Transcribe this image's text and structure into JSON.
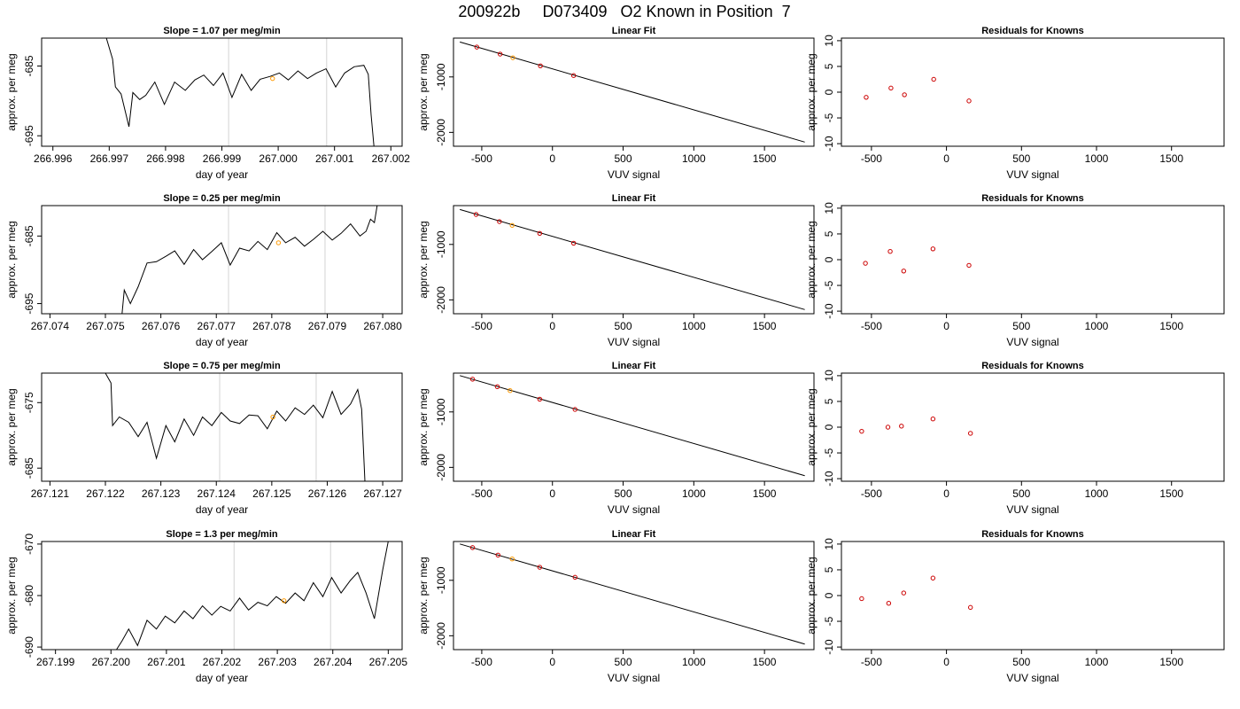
{
  "figure": {
    "title": "200922b     D073409   O2 Known in Position  7"
  },
  "colors": {
    "line": "#000000",
    "grid": "#d3d3d3",
    "point_red": "#cc0000",
    "point_orange": "#ff9900"
  },
  "chart_data": [
    {
      "type": "line",
      "row": 0,
      "col": 0,
      "title": "Slope =  1.07  per meg/min",
      "xlabel": "day of year",
      "ylabel": "approx. per meg",
      "xlim": [
        266.9958,
        267.0022
      ],
      "ylim": [
        -696.5,
        -681.0
      ],
      "xticks": [
        266.996,
        266.997,
        266.998,
        266.999,
        267.0,
        267.001,
        267.002
      ],
      "xtick_labels": [
        "266.996",
        "266.997",
        "266.998",
        "266.999",
        "267.000",
        "267.001",
        "267.002"
      ],
      "yticks": [
        -685,
        -695
      ],
      "ytick_labels": [
        "-685",
        "-695"
      ],
      "vlines": [
        266.99912,
        267.00086
      ],
      "x": [
        266.99695,
        266.99706,
        266.99711,
        266.99721,
        266.99735,
        266.99742,
        266.99754,
        266.99765,
        266.99781,
        266.99798,
        266.99816,
        266.99835,
        266.99852,
        266.99868,
        266.99885,
        266.99902,
        266.99918,
        266.99935,
        266.99952,
        266.99968,
        266.99985,
        267.00002,
        267.00018,
        267.00035,
        267.00052,
        267.00068,
        267.00085,
        267.00102,
        267.00118,
        267.00135,
        267.00152,
        267.0016,
        267.00165,
        267.0017
      ],
      "y": [
        -681,
        -684,
        -688,
        -689,
        -693.7,
        -688.8,
        -689.8,
        -689.2,
        -687.3,
        -690.5,
        -687.3,
        -688.5,
        -687.0,
        -686.3,
        -687.8,
        -686.0,
        -689.5,
        -686.2,
        -688.5,
        -686.9,
        -686.5,
        -686.0,
        -687.0,
        -685.7,
        -686.8,
        -686.0,
        -685.4,
        -688.0,
        -686.0,
        -685.1,
        -684.9,
        -686.2,
        -692.0,
        -696.5
      ],
      "marker": {
        "x": 266.9999,
        "y": -686.8
      }
    },
    {
      "type": "line",
      "row": 1,
      "col": 0,
      "title": "Slope =  0.25  per meg/min",
      "xlabel": "day of year",
      "ylabel": "approx. per meg",
      "xlim": [
        267.07385,
        267.08035
      ],
      "ylim": [
        -696.5,
        -680.5
      ],
      "xticks": [
        267.074,
        267.075,
        267.076,
        267.077,
        267.078,
        267.079,
        267.08
      ],
      "xtick_labels": [
        "267.074",
        "267.075",
        "267.076",
        "267.077",
        "267.078",
        "267.079",
        "267.080"
      ],
      "yticks": [
        -685,
        -695
      ],
      "ytick_labels": [
        "-685",
        "-695"
      ],
      "vlines": [
        267.07722,
        267.07896
      ],
      "x": [
        267.0753,
        267.07534,
        267.07545,
        267.07559,
        267.07575,
        267.07592,
        267.07609,
        267.07625,
        267.07642,
        267.07659,
        267.07675,
        267.07692,
        267.07709,
        267.07725,
        267.07742,
        267.07759,
        267.07775,
        267.07792,
        267.07809,
        267.07825,
        267.07842,
        267.07859,
        267.07875,
        267.07892,
        267.07909,
        267.07925,
        267.07942,
        267.07959,
        267.0797,
        267.07978,
        267.07985,
        267.0799
      ],
      "y": [
        -696.5,
        -693.0,
        -695.0,
        -692.5,
        -689.0,
        -688.8,
        -688.0,
        -687.2,
        -689.2,
        -687.0,
        -688.5,
        -687.3,
        -686.0,
        -689.3,
        -686.8,
        -687.2,
        -685.8,
        -687.0,
        -684.5,
        -686.0,
        -685.2,
        -686.5,
        -685.5,
        -684.3,
        -685.6,
        -684.6,
        -683.2,
        -685.0,
        -684.3,
        -682.5,
        -683.0,
        -680.5
      ],
      "marker": {
        "x": 267.07812,
        "y": -686.0
      }
    },
    {
      "type": "line",
      "row": 2,
      "col": 0,
      "title": "Slope =  0.75  per meg/min",
      "xlabel": "day of year",
      "ylabel": "approx. per meg",
      "xlim": [
        267.12085,
        267.12735
      ],
      "ylim": [
        -687.0,
        -670.5
      ],
      "xticks": [
        267.121,
        267.122,
        267.123,
        267.124,
        267.125,
        267.126,
        267.127
      ],
      "xtick_labels": [
        "267.121",
        "267.122",
        "267.123",
        "267.124",
        "267.125",
        "267.126",
        "267.127"
      ],
      "yticks": [
        -675,
        -685
      ],
      "ytick_labels": [
        "-675",
        "-685"
      ],
      "vlines": [
        267.12406,
        267.1258
      ],
      "x": [
        267.122,
        267.1221,
        267.12213,
        267.12225,
        267.12242,
        267.12259,
        267.12275,
        267.12292,
        267.12309,
        267.12325,
        267.12342,
        267.12359,
        267.12375,
        267.12392,
        267.12409,
        267.12425,
        267.12442,
        267.12459,
        267.12475,
        267.12492,
        267.12509,
        267.12525,
        267.12542,
        267.12559,
        267.12575,
        267.12592,
        267.12609,
        267.12625,
        267.12642,
        267.12655,
        267.12662,
        267.12668
      ],
      "y": [
        -670.5,
        -672.0,
        -678.5,
        -677.2,
        -678.0,
        -680.2,
        -678.0,
        -683.5,
        -678.5,
        -681.0,
        -677.5,
        -680.0,
        -677.2,
        -678.5,
        -676.5,
        -677.8,
        -678.2,
        -676.9,
        -677.0,
        -679.0,
        -676.3,
        -677.8,
        -675.8,
        -676.8,
        -675.4,
        -677.3,
        -673.3,
        -676.8,
        -675.2,
        -673.0,
        -676.0,
        -687.0
      ],
      "marker": {
        "x": 267.12502,
        "y": -677.2
      }
    },
    {
      "type": "line",
      "row": 3,
      "col": 0,
      "title": "Slope =  1.3  per meg/min",
      "xlabel": "day of year",
      "ylabel": "approx. per meg",
      "xlim": [
        267.19875,
        267.20525
      ],
      "ylim": [
        -690.5,
        -669.5
      ],
      "xticks": [
        267.199,
        267.2,
        267.201,
        267.202,
        267.203,
        267.204,
        267.205
      ],
      "xtick_labels": [
        "267.199",
        "267.200",
        "267.201",
        "267.202",
        "267.203",
        "267.204",
        "267.205"
      ],
      "yticks": [
        -670,
        -680,
        -690
      ],
      "ytick_labels": [
        "-670",
        "-680",
        "-690"
      ],
      "vlines": [
        267.20222,
        267.20396
      ],
      "x": [
        267.2001,
        267.2002,
        267.20032,
        267.20048,
        267.20065,
        267.20082,
        267.20098,
        267.20115,
        267.20132,
        267.20148,
        267.20165,
        267.20182,
        267.20198,
        267.20215,
        267.20232,
        267.20248,
        267.20265,
        267.20282,
        267.20298,
        267.20315,
        267.20332,
        267.20348,
        267.20365,
        267.20382,
        267.20398,
        267.20415,
        267.20432,
        267.20445,
        267.2046,
        267.20475,
        267.2049,
        267.205
      ],
      "y": [
        -690.5,
        -688.8,
        -686.5,
        -689.7,
        -684.8,
        -686.5,
        -684.0,
        -685.3,
        -683.0,
        -684.5,
        -682.0,
        -683.8,
        -682.1,
        -683.0,
        -680.5,
        -682.8,
        -681.3,
        -682.0,
        -680.2,
        -681.5,
        -679.5,
        -681.0,
        -677.5,
        -680.2,
        -676.5,
        -679.5,
        -677.0,
        -675.5,
        -679.5,
        -684.5,
        -675.0,
        -669.5
      ],
      "marker": {
        "x": 267.20312,
        "y": -681.0
      }
    },
    {
      "type": "scatter",
      "row": 0,
      "col": 1,
      "title": "Linear Fit",
      "xlabel": "VUV signal",
      "ylabel": "approx. per meg",
      "xlim": [
        -700,
        1850
      ],
      "ylim": [
        -2250,
        -300
      ],
      "xticks": [
        -500,
        0,
        500,
        1000,
        1500
      ],
      "xtick_labels": [
        "-500",
        "0",
        "500",
        "1000",
        "1500"
      ],
      "yticks": [
        -1000,
        -2000
      ],
      "ytick_labels": [
        "-1000",
        "-2000"
      ],
      "fit_line": {
        "x": [
          -655,
          1785
        ],
        "y": [
          -370,
          -2175
        ]
      },
      "points": [
        {
          "x": -535,
          "y": -462,
          "color": "red"
        },
        {
          "x": -370,
          "y": -588,
          "color": "red"
        },
        {
          "x": -280,
          "y": -654,
          "color": "orange"
        },
        {
          "x": -85,
          "y": -800,
          "color": "red"
        },
        {
          "x": 150,
          "y": -975,
          "color": "red"
        }
      ]
    },
    {
      "type": "scatter",
      "row": 1,
      "col": 1,
      "title": "Linear Fit",
      "xlabel": "VUV signal",
      "ylabel": "approx. per meg",
      "xlim": [
        -700,
        1850
      ],
      "ylim": [
        -2250,
        -300
      ],
      "xticks": [
        -500,
        0,
        500,
        1000,
        1500
      ],
      "xtick_labels": [
        "-500",
        "0",
        "500",
        "1000",
        "1500"
      ],
      "yticks": [
        -1000,
        -2000
      ],
      "ytick_labels": [
        "-1000",
        "-2000"
      ],
      "fit_line": {
        "x": [
          -655,
          1785
        ],
        "y": [
          -370,
          -2175
        ]
      },
      "points": [
        {
          "x": -540,
          "y": -460,
          "color": "red"
        },
        {
          "x": -375,
          "y": -588,
          "color": "red"
        },
        {
          "x": -285,
          "y": -656,
          "color": "orange"
        },
        {
          "x": -90,
          "y": -800,
          "color": "red"
        },
        {
          "x": 150,
          "y": -978,
          "color": "red"
        }
      ]
    },
    {
      "type": "scatter",
      "row": 2,
      "col": 1,
      "title": "Linear Fit",
      "xlabel": "VUV signal",
      "ylabel": "approx. per meg",
      "xlim": [
        -700,
        1850
      ],
      "ylim": [
        -2250,
        -300
      ],
      "xticks": [
        -500,
        0,
        500,
        1000,
        1500
      ],
      "xtick_labels": [
        "-500",
        "0",
        "500",
        "1000",
        "1500"
      ],
      "yticks": [
        -1000,
        -2000
      ],
      "ytick_labels": [
        "-1000",
        "-2000"
      ],
      "fit_line": {
        "x": [
          -655,
          1785
        ],
        "y": [
          -345,
          -2150
        ]
      },
      "points": [
        {
          "x": -565,
          "y": -410,
          "color": "red"
        },
        {
          "x": -390,
          "y": -545,
          "color": "red"
        },
        {
          "x": -300,
          "y": -615,
          "color": "orange"
        },
        {
          "x": -90,
          "y": -770,
          "color": "red"
        },
        {
          "x": 160,
          "y": -955,
          "color": "red"
        }
      ]
    },
    {
      "type": "scatter",
      "row": 3,
      "col": 1,
      "title": "Linear Fit",
      "xlabel": "VUV signal",
      "ylabel": "approx. per meg",
      "xlim": [
        -700,
        1850
      ],
      "ylim": [
        -2250,
        -300
      ],
      "xticks": [
        -500,
        0,
        500,
        1000,
        1500
      ],
      "xtick_labels": [
        "-500",
        "0",
        "500",
        "1000",
        "1500"
      ],
      "yticks": [
        -1000,
        -2000
      ],
      "ytick_labels": [
        "-1000",
        "-2000"
      ],
      "fit_line": {
        "x": [
          -655,
          1785
        ],
        "y": [
          -345,
          -2150
        ]
      },
      "points": [
        {
          "x": -565,
          "y": -410,
          "color": "red"
        },
        {
          "x": -385,
          "y": -545,
          "color": "red"
        },
        {
          "x": -285,
          "y": -615,
          "color": "orange"
        },
        {
          "x": -90,
          "y": -765,
          "color": "red"
        },
        {
          "x": 160,
          "y": -945,
          "color": "red"
        }
      ]
    },
    {
      "type": "scatter",
      "row": 0,
      "col": 2,
      "title": "Residuals for Knowns",
      "xlabel": "VUV signal",
      "ylabel": "approx. per meg",
      "xlim": [
        -700,
        1850
      ],
      "ylim": [
        -10.5,
        10.5
      ],
      "xticks": [
        -500,
        0,
        500,
        1000,
        1500
      ],
      "xtick_labels": [
        "-500",
        "0",
        "500",
        "1000",
        "1500"
      ],
      "yticks": [
        10,
        5,
        0,
        -5,
        -10
      ],
      "ytick_labels": [
        "10",
        "5",
        "0",
        "-5",
        "-10"
      ],
      "points": [
        {
          "x": -535,
          "y": -1.0,
          "color": "red"
        },
        {
          "x": -370,
          "y": 0.8,
          "color": "red"
        },
        {
          "x": -280,
          "y": -0.5,
          "color": "red"
        },
        {
          "x": -85,
          "y": 2.5,
          "color": "red"
        },
        {
          "x": 150,
          "y": -1.7,
          "color": "red"
        }
      ]
    },
    {
      "type": "scatter",
      "row": 1,
      "col": 2,
      "title": "Residuals for Knowns",
      "xlabel": "VUV signal",
      "ylabel": "approx. per meg",
      "xlim": [
        -700,
        1850
      ],
      "ylim": [
        -10.5,
        10.5
      ],
      "xticks": [
        -500,
        0,
        500,
        1000,
        1500
      ],
      "xtick_labels": [
        "-500",
        "0",
        "500",
        "1000",
        "1500"
      ],
      "yticks": [
        10,
        5,
        0,
        -5,
        -10
      ],
      "ytick_labels": [
        "10",
        "5",
        "0",
        "-5",
        "-10"
      ],
      "points": [
        {
          "x": -540,
          "y": -0.7,
          "color": "red"
        },
        {
          "x": -375,
          "y": 1.6,
          "color": "red"
        },
        {
          "x": -285,
          "y": -2.2,
          "color": "red"
        },
        {
          "x": -90,
          "y": 2.1,
          "color": "red"
        },
        {
          "x": 150,
          "y": -1.1,
          "color": "red"
        }
      ]
    },
    {
      "type": "scatter",
      "row": 2,
      "col": 2,
      "title": "Residuals for Knowns",
      "xlabel": "VUV signal",
      "ylabel": "approx. per meg",
      "xlim": [
        -700,
        1850
      ],
      "ylim": [
        -10.5,
        10.5
      ],
      "xticks": [
        -500,
        0,
        500,
        1000,
        1500
      ],
      "xtick_labels": [
        "-500",
        "0",
        "500",
        "1000",
        "1500"
      ],
      "yticks": [
        10,
        5,
        0,
        -5,
        -10
      ],
      "ytick_labels": [
        "10",
        "5",
        "0",
        "-5",
        "-10"
      ],
      "points": [
        {
          "x": -565,
          "y": -0.8,
          "color": "red"
        },
        {
          "x": -390,
          "y": 0.0,
          "color": "red"
        },
        {
          "x": -300,
          "y": 0.2,
          "color": "red"
        },
        {
          "x": -90,
          "y": 1.6,
          "color": "red"
        },
        {
          "x": 160,
          "y": -1.2,
          "color": "red"
        }
      ]
    },
    {
      "type": "scatter",
      "row": 3,
      "col": 2,
      "title": "Residuals for Knowns",
      "xlabel": "VUV signal",
      "ylabel": "approx. per meg",
      "xlim": [
        -700,
        1850
      ],
      "ylim": [
        -10.5,
        10.5
      ],
      "xticks": [
        -500,
        0,
        500,
        1000,
        1500
      ],
      "xtick_labels": [
        "-500",
        "0",
        "500",
        "1000",
        "1500"
      ],
      "yticks": [
        10,
        5,
        0,
        -5,
        -10
      ],
      "ytick_labels": [
        "10",
        "5",
        "0",
        "-5",
        "-10"
      ],
      "points": [
        {
          "x": -565,
          "y": -0.6,
          "color": "red"
        },
        {
          "x": -385,
          "y": -1.5,
          "color": "red"
        },
        {
          "x": -285,
          "y": 0.5,
          "color": "red"
        },
        {
          "x": -90,
          "y": 3.4,
          "color": "red"
        },
        {
          "x": 160,
          "y": -2.3,
          "color": "red"
        }
      ]
    }
  ]
}
